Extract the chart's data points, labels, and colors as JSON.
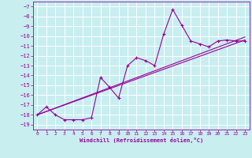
{
  "xlabel": "Windchill (Refroidissement éolien,°C)",
  "bg_color": "#c8eef0",
  "grid_color": "#ffffff",
  "line_color": "#990099",
  "xlim": [
    -0.5,
    23.5
  ],
  "ylim": [
    -19.5,
    -6.5
  ],
  "xticks": [
    0,
    1,
    2,
    3,
    4,
    5,
    6,
    7,
    8,
    9,
    10,
    11,
    12,
    13,
    14,
    15,
    16,
    17,
    18,
    19,
    20,
    21,
    22,
    23
  ],
  "yticks": [
    -7,
    -8,
    -9,
    -10,
    -11,
    -12,
    -13,
    -14,
    -15,
    -16,
    -17,
    -18,
    -19
  ],
  "line1_x": [
    0,
    1,
    2,
    3,
    4,
    5,
    6,
    7,
    8,
    9,
    10,
    11,
    12,
    13,
    14,
    15,
    16,
    17,
    18,
    19,
    20,
    21,
    22,
    23
  ],
  "line1_y": [
    -18.0,
    -17.2,
    -18.0,
    -18.5,
    -18.5,
    -18.5,
    -18.3,
    -14.2,
    -15.2,
    -16.3,
    -13.0,
    -12.2,
    -12.5,
    -13.0,
    -9.8,
    -7.3,
    -8.9,
    -10.5,
    -10.8,
    -11.1,
    -10.5,
    -10.4,
    -10.5,
    -10.5
  ],
  "line2_x": [
    0,
    23
  ],
  "line2_y": [
    -18.0,
    -10.4
  ],
  "line3_x": [
    0,
    23
  ],
  "line3_y": [
    -18.0,
    -10.1
  ]
}
